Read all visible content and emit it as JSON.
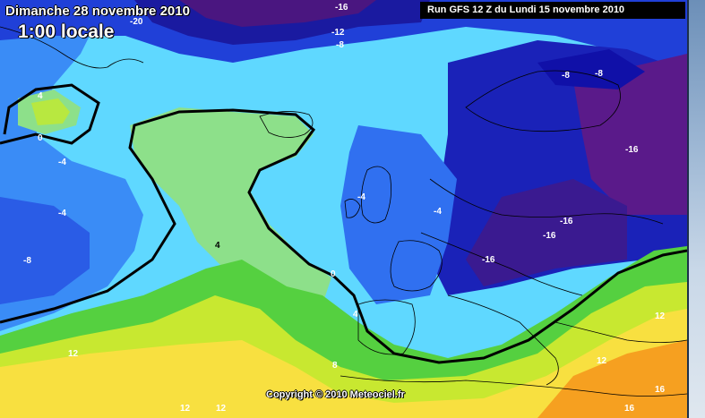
{
  "header": {
    "date_title": "Dimanche 28 novembre 2010",
    "time_title": "1:00 locale",
    "run_info": "Run GFS 12 Z du Lundi 15 novembre 2010"
  },
  "footer": {
    "copyright": "Copyright © 2010 Meteociel.fr"
  },
  "isotherm_labels": [
    "-20",
    "-16",
    "-12",
    "-8",
    "-8",
    "-8",
    "-16",
    "-16",
    "-16",
    "-16",
    "4",
    "0",
    "-4",
    "-4",
    "-4",
    "-4",
    "-8",
    "4",
    "0",
    "4",
    "8",
    "12",
    "12",
    "12",
    "12",
    "12",
    "16",
    "16"
  ],
  "palette": {
    "deep_purple": "#6a1a8a",
    "dark_blue": "#1a1aa0",
    "blue": "#2a4fe0",
    "light_blue": "#3fa0ff",
    "cyan": "#5fe0ff",
    "pale_green": "#8de08a",
    "green": "#55d040",
    "yellow_green": "#c8e830",
    "yellow": "#f8e040",
    "orange": "#f6a020",
    "land_outline": "#000000"
  }
}
